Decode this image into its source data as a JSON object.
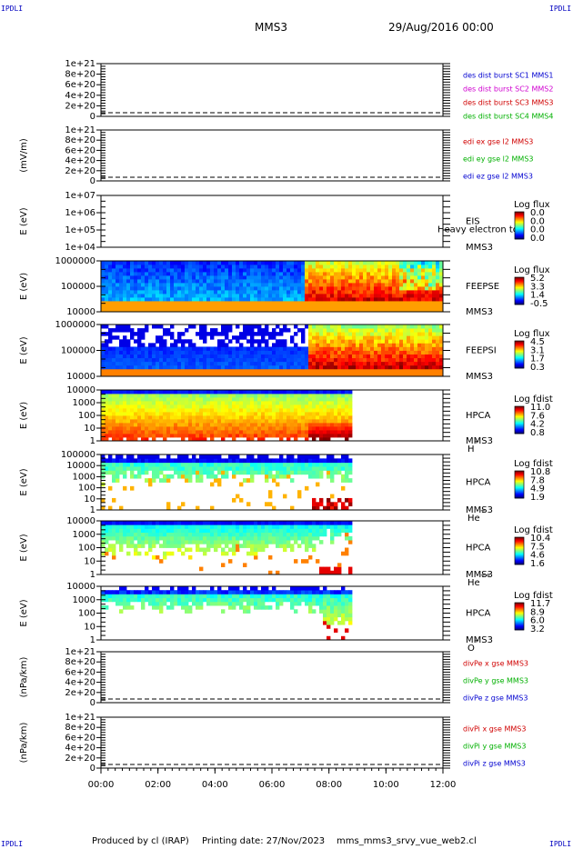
{
  "corner_label": "IPDLI",
  "title": "MMS3",
  "date_title": "29/Aug/2016 00:00",
  "footer": {
    "produced_by": "Produced by cl (IRAP)",
    "printing_date": "Printing date: 27/Nov/2023",
    "script": "mms_mms3_srvy_vue_web2.cl"
  },
  "x_axis": {
    "ticks": [
      "00:00",
      "02:00",
      "04:00",
      "06:00",
      "08:00",
      "10:00",
      "12:00"
    ]
  },
  "chart_data": [
    {
      "type": "line",
      "name": "des-dist",
      "ylabel": "",
      "ytick_labels": [
        "0",
        "2e+20",
        "4e+20",
        "6e+20",
        "8e+20",
        "1e+21"
      ],
      "legend": [
        {
          "text": "des dist burst SC1 MMS1",
          "color": "#0000d0"
        },
        {
          "text": "des dist burst SC2 MMS2",
          "color": "#d000d0"
        },
        {
          "text": "des dist burst SC3 MMS3",
          "color": "#d00000"
        },
        {
          "text": "des dist burst SC4 MMS4",
          "color": "#00b000"
        }
      ]
    },
    {
      "type": "line",
      "name": "edi",
      "ylabel": "(mV/m)",
      "ytick_labels": [
        "0",
        "2e+20",
        "4e+20",
        "6e+20",
        "8e+20",
        "1e+21"
      ],
      "legend": [
        {
          "text": "edi ex gse l2 MMS3",
          "color": "#d00000"
        },
        {
          "text": "edi ey gse l2 MMS3",
          "color": "#00b000"
        },
        {
          "text": "edi ez gse l2 MMS3",
          "color": "#0000d0"
        }
      ]
    },
    {
      "type": "heatmap",
      "name": "eis",
      "ylabel": "E (eV)",
      "ytick_labels": [
        "1e+04",
        "1e+05",
        "1e+06",
        "1e+07"
      ],
      "instrument": "EIS",
      "instrument_sub": "MMS3",
      "overlap_text": "Heavy electron to",
      "colorbar_title": "Log flux",
      "colorbar_labels": [
        "0.0",
        "0.0",
        "0.0",
        "0.0"
      ]
    },
    {
      "type": "heatmap",
      "name": "feepse",
      "ylabel": "E (eV)",
      "ytick_labels": [
        "10000",
        "100000",
        "1000000"
      ],
      "instrument": "FEEPSE",
      "instrument_sub": "MMS3",
      "colorbar_title": "Log flux",
      "colorbar_labels": [
        "5.2",
        "3.3",
        "1.4",
        "-0.5"
      ]
    },
    {
      "type": "heatmap",
      "name": "feepsi",
      "ylabel": "E (eV)",
      "ytick_labels": [
        "10000",
        "100000",
        "1000000"
      ],
      "instrument": "FEEPSI",
      "instrument_sub": "MMS3",
      "colorbar_title": "Log flux",
      "colorbar_labels": [
        "4.5",
        "3.1",
        "1.7",
        "0.3"
      ]
    },
    {
      "type": "heatmap",
      "name": "hpca-h",
      "ylabel": "E (eV)",
      "ytick_labels": [
        "1",
        "10",
        "100",
        "1000",
        "10000"
      ],
      "instrument": "HPCA",
      "instrument_sub": "MMS3",
      "species": "H",
      "species_sup": "+",
      "colorbar_title": "Log fdist",
      "colorbar_labels": [
        "11.0",
        "7.6",
        "4.2",
        "0.8"
      ]
    },
    {
      "type": "heatmap",
      "name": "hpca-he",
      "ylabel": "E (eV)",
      "ytick_labels": [
        "1",
        "10",
        "100",
        "1000",
        "10000",
        "100000"
      ],
      "instrument": "HPCA",
      "instrument_sub": "MMS3",
      "species": "He",
      "species_sup": "+",
      "colorbar_title": "Log fdist",
      "colorbar_labels": [
        "10.8",
        "7.8",
        "4.9",
        "1.9"
      ]
    },
    {
      "type": "heatmap",
      "name": "hpca-he2",
      "ylabel": "E (eV)",
      "ytick_labels": [
        "1",
        "10",
        "100",
        "1000",
        "10000"
      ],
      "instrument": "HPCA",
      "instrument_sub": "MMS3",
      "species": "He",
      "species_sup": "++",
      "colorbar_title": "Log fdist",
      "colorbar_labels": [
        "10.4",
        "7.5",
        "4.6",
        "1.6"
      ]
    },
    {
      "type": "heatmap",
      "name": "hpca-o",
      "ylabel": "E (eV)",
      "ytick_labels": [
        "1",
        "10",
        "100",
        "1000",
        "10000"
      ],
      "instrument": "HPCA",
      "instrument_sub": "MMS3",
      "species": "O",
      "species_sup": "+",
      "colorbar_title": "Log fdist",
      "colorbar_labels": [
        "11.7",
        "8.9",
        "6.0",
        "3.2"
      ]
    },
    {
      "type": "line",
      "name": "divpe",
      "ylabel": "(nPa/km)",
      "ytick_labels": [
        "0",
        "2e+20",
        "4e+20",
        "6e+20",
        "8e+20",
        "1e+21"
      ],
      "legend": [
        {
          "text": "divPe x gse MMS3",
          "color": "#d00000"
        },
        {
          "text": "divPe y gse MMS3",
          "color": "#00b000"
        },
        {
          "text": "divPe z gse MMS3",
          "color": "#0000d0"
        }
      ]
    },
    {
      "type": "line",
      "name": "divpi",
      "ylabel": "(nPa/km)",
      "ytick_labels": [
        "0",
        "2e+20",
        "4e+20",
        "6e+20",
        "8e+20",
        "1e+21"
      ],
      "legend": [
        {
          "text": "divPi x gse MMS3",
          "color": "#d00000"
        },
        {
          "text": "divPi y gse MMS3",
          "color": "#00b000"
        },
        {
          "text": "divPi z gse MMS3",
          "color": "#0000d0"
        }
      ]
    }
  ]
}
